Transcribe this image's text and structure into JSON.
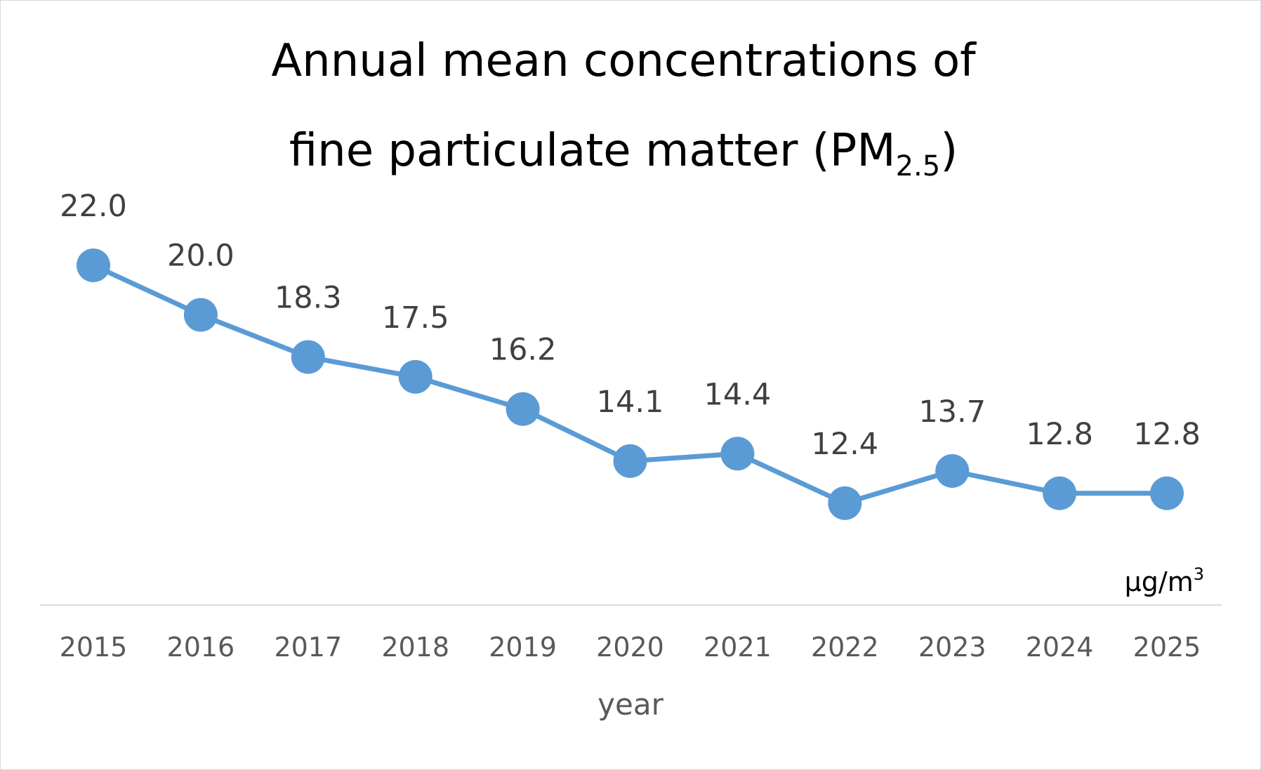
{
  "chart_data": {
    "type": "line",
    "title_main": "Annual mean concentrations of",
    "title_line2_prefix": "fine particulate matter (PM",
    "title_subscript": "2.5",
    "title_line2_suffix": ")",
    "xlabel": "year",
    "unit_base": "μg/m",
    "unit_sup": "3",
    "categories": [
      "2015",
      "2016",
      "2017",
      "2018",
      "2019",
      "2020",
      "2021",
      "2022",
      "2023",
      "2024",
      "2025"
    ],
    "series": [
      {
        "values": [
          22.0,
          20.0,
          18.3,
          17.5,
          16.2,
          14.1,
          14.4,
          12.4,
          13.7,
          12.8,
          12.8
        ]
      }
    ],
    "data_labels": [
      "22.0",
      "20.0",
      "18.3",
      "17.5",
      "16.2",
      "14.1",
      "14.4",
      "12.4",
      "13.7",
      "12.8",
      "12.8"
    ],
    "ylim": [
      0,
      22
    ],
    "grid": false,
    "colors": {
      "line": "#5b9bd5",
      "axis": "#d9d9d9"
    }
  }
}
